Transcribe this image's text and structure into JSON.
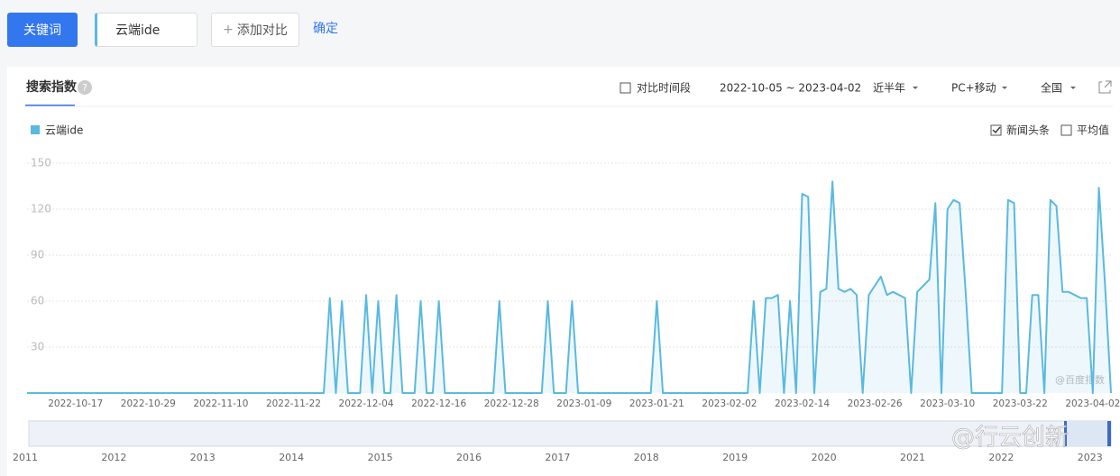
{
  "toolbar": {
    "keyword_button": "关键词",
    "keyword": "云端ide",
    "add_compare": "添加对比",
    "confirm": "确定"
  },
  "panel": {
    "tab": "搜索指数",
    "help": "?",
    "compare_period": "对比时间段",
    "date_range": "2022-10-05 ~ 2023-04-02",
    "period": "近半年",
    "device": "PC+移动",
    "region": "全国",
    "news_checkbox": "新闻头条",
    "average_checkbox": "平均值",
    "watermark": "@百度指数"
  },
  "chart_data": {
    "type": "line",
    "categories": [
      null,
      null,
      null,
      null,
      null,
      null,
      null,
      null,
      "2022-10-17",
      null,
      null,
      null,
      null,
      null,
      null,
      null,
      null,
      null,
      null,
      null,
      "2022-10-29",
      null,
      null,
      null,
      null,
      null,
      null,
      null,
      null,
      null,
      null,
      null,
      "2022-11-10",
      null,
      null,
      null,
      null,
      null,
      null,
      null,
      null,
      null,
      null,
      null,
      "2022-11-22",
      null,
      null,
      null,
      null,
      null,
      null,
      null,
      null,
      null,
      null,
      null,
      "2022-12-04",
      null,
      null,
      null,
      null,
      null,
      null,
      null,
      null,
      null,
      null,
      null,
      "2022-12-16",
      null,
      null,
      null,
      null,
      null,
      null,
      null,
      null,
      null,
      null,
      null,
      "2022-12-28",
      null,
      null,
      null,
      null,
      null,
      null,
      null,
      null,
      null,
      null,
      null,
      "2023-01-09",
      null,
      null,
      null,
      null,
      null,
      null,
      null,
      null,
      null,
      null,
      null,
      "2023-01-21",
      null,
      null,
      null,
      null,
      null,
      null,
      null,
      null,
      null,
      null,
      null,
      "2023-02-02",
      null,
      null,
      null,
      null,
      null,
      null,
      null,
      null,
      null,
      null,
      null,
      "2023-02-14",
      null,
      null,
      null,
      null,
      null,
      null,
      null,
      null,
      null,
      null,
      null,
      "2023-02-26",
      null,
      null,
      null,
      null,
      null,
      null,
      null,
      null,
      null,
      null,
      null,
      "2023-03-10",
      null,
      null,
      null,
      null,
      null,
      null,
      null,
      null,
      null,
      null,
      null,
      "2023-03-22",
      null,
      null,
      null,
      null,
      null,
      null,
      null,
      null,
      null,
      null,
      null,
      "2023-04-02",
      null,
      null,
      null
    ],
    "series": [
      {
        "name": "云端ide",
        "color": "#5ab9e1",
        "values": [
          0,
          0,
          0,
          0,
          0,
          0,
          0,
          0,
          0,
          0,
          0,
          0,
          0,
          0,
          0,
          0,
          0,
          0,
          0,
          0,
          0,
          0,
          0,
          0,
          0,
          0,
          0,
          0,
          0,
          0,
          0,
          0,
          0,
          0,
          0,
          0,
          0,
          0,
          0,
          0,
          0,
          0,
          0,
          0,
          0,
          0,
          0,
          0,
          0,
          0,
          62,
          0,
          60,
          0,
          0,
          0,
          64,
          0,
          60,
          0,
          0,
          64,
          0,
          0,
          0,
          60,
          0,
          0,
          60,
          0,
          0,
          0,
          0,
          0,
          0,
          0,
          0,
          0,
          60,
          0,
          0,
          0,
          0,
          0,
          0,
          0,
          60,
          0,
          0,
          0,
          60,
          0,
          0,
          0,
          0,
          0,
          0,
          0,
          0,
          0,
          0,
          0,
          0,
          0,
          60,
          0,
          0,
          0,
          0,
          0,
          0,
          0,
          0,
          0,
          0,
          0,
          0,
          0,
          0,
          0,
          60,
          0,
          62,
          62,
          64,
          0,
          60,
          0,
          130,
          128,
          0,
          66,
          68,
          138,
          68,
          66,
          68,
          64,
          0,
          64,
          70,
          76,
          64,
          66,
          64,
          62,
          0,
          66,
          70,
          74,
          124,
          0,
          120,
          126,
          124,
          66,
          0,
          0,
          0,
          0,
          0,
          0,
          126,
          124,
          0,
          0,
          64,
          64,
          0,
          126,
          122,
          66,
          66,
          64,
          62,
          62,
          0,
          134,
          72,
          0
        ]
      }
    ],
    "ylim": [
      0,
      150
    ],
    "yticks": [
      30,
      60,
      90,
      120,
      150
    ],
    "grid": true
  },
  "timeline": {
    "years": [
      "2011",
      "2012",
      "2013",
      "2014",
      "2015",
      "2016",
      "2017",
      "2018",
      "2019",
      "2020",
      "2021",
      "2022",
      "2023"
    ],
    "watermark": "@行云创新"
  }
}
